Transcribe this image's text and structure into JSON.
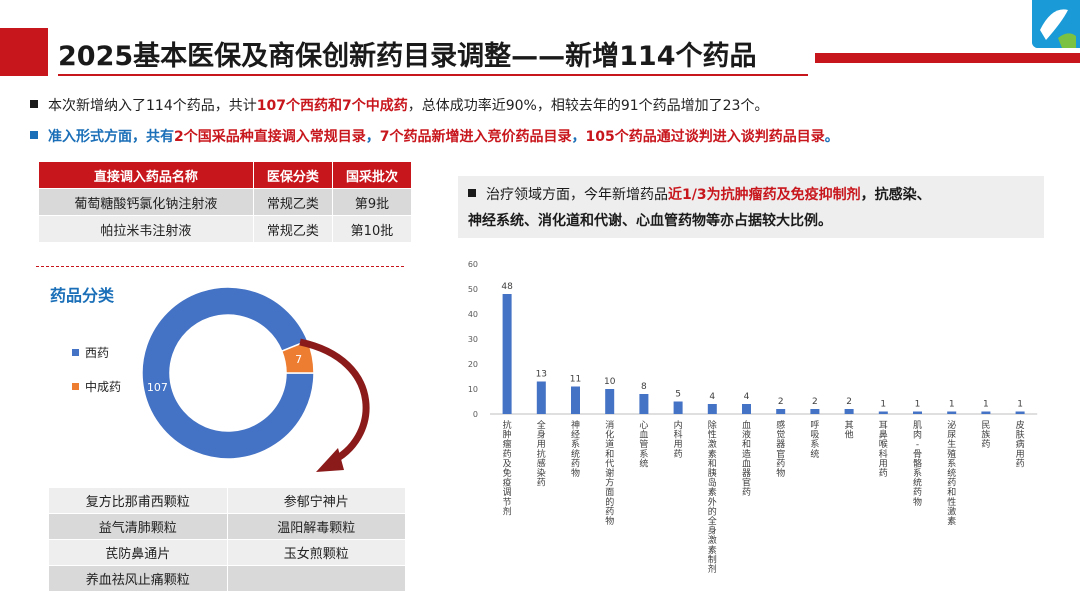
{
  "header": {
    "title": "2025基本医保及商保创新药目录调整——新增114个药品"
  },
  "bullets": {
    "b1_a": "本次新增纳入了114个药品，共计",
    "b1_red": "107个西药和7个中成药",
    "b1_b": "，总体成功率近90%，相较去年的91个药品增加了23个。",
    "b2_a": "准入形式方面，共有",
    "b2_r1": "2个国采品种直接调入常规目录",
    "b2_b": "，",
    "b2_r2": "7个药品新增进入竞价药品目录",
    "b2_c": "，",
    "b2_r3": "105个药品通过谈判进入谈判药品目录",
    "b2_d": "。"
  },
  "table1": {
    "headers": [
      "直接调入药品名称",
      "医保分类",
      "国采批次"
    ],
    "rows": [
      [
        "葡萄糖酸钙氯化钠注射液",
        "常规乙类",
        "第9批"
      ],
      [
        "帕拉米韦注射液",
        "常规乙类",
        "第10批"
      ]
    ]
  },
  "therapy_note": {
    "a": "治疗领域方面，今年新增药品",
    "red": "近1/3为抗肿瘤药及免疫抑制剂",
    "b": "，抗感染、",
    "line2": "神经系统、消化道和代谢、心血管药物等亦占据较大比例。"
  },
  "donut": {
    "title": "药品分类",
    "legend": [
      {
        "label": "西药",
        "color": "#4472c4"
      },
      {
        "label": "中成药",
        "color": "#ed7d31"
      }
    ]
  },
  "table2": {
    "rows": [
      [
        "复方比那甫西颗粒",
        "参郁宁神片"
      ],
      [
        "益气清肺颗粒",
        "温阳解毒颗粒"
      ],
      [
        "芪防鼻通片",
        "玉女煎颗粒"
      ],
      [
        "养血祛风止痛颗粒",
        ""
      ]
    ]
  },
  "chart_data": [
    {
      "type": "pie",
      "labels": [
        "西药",
        "中成药"
      ],
      "values": [
        107,
        7
      ],
      "colors": [
        "#4472c4",
        "#ed7d31"
      ],
      "donut": true
    },
    {
      "type": "bar",
      "categories": [
        "抗肿瘤药及免疫调节剂",
        "全身用抗感染药",
        "神经系统药物",
        "消化道和代谢方面的药物",
        "心血管系统",
        "内科用药",
        "除性激素和胰岛素外的全身激素制剂",
        "血液和造血器官药",
        "感觉器官药物",
        "呼吸系统",
        "其他",
        "耳鼻喉科用药",
        "肌肉-骨骼系统药物",
        "泌尿生殖系统药和性激素",
        "民族药",
        "皮肤病用药"
      ],
      "values": [
        48,
        13,
        11,
        10,
        8,
        5,
        4,
        4,
        2,
        2,
        2,
        1,
        1,
        1,
        1,
        1
      ],
      "ylim": [
        0,
        60
      ],
      "yticks": [
        0,
        10,
        20,
        30,
        40,
        50,
        60
      ],
      "color": "#4472c4",
      "grid": false
    }
  ]
}
